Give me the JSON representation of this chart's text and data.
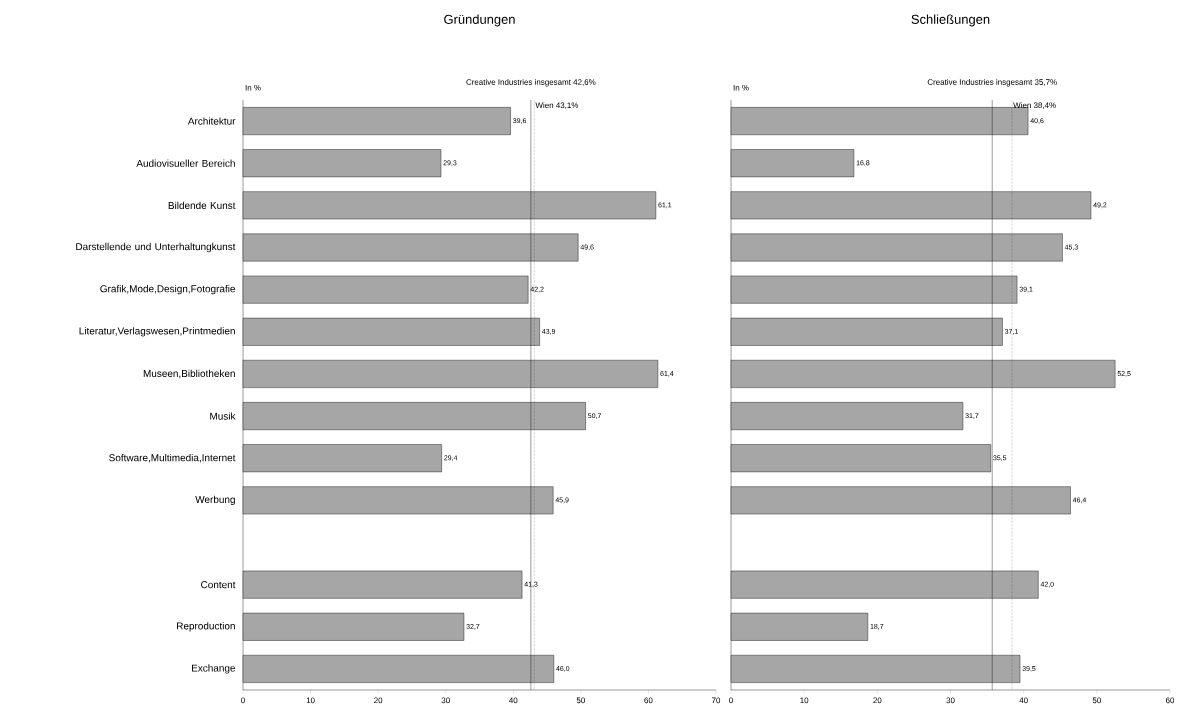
{
  "chart_data": [
    {
      "type": "bar",
      "orientation": "horizontal",
      "title": "Gründungen",
      "color": "#a6a6a6",
      "categories": [
        "Architektur",
        "Audiovisueller Bereich",
        "Bildende Kunst",
        "Darstellende und Unterhaltungkunst",
        "Grafik,Mode,Design,Fotografie",
        "Literatur,Verlagswesen,Printmedien",
        "Museen,Bibliotheken",
        "Musik",
        "Software,Multimedia,Internet",
        "Werbung",
        null,
        "Content",
        "Reproduction",
        "Exchange"
      ],
      "values": [
        39.6,
        29.3,
        61.1,
        49.6,
        42.2,
        43.9,
        61.4,
        50.7,
        29.4,
        45.9,
        null,
        41.3,
        32.7,
        46.0
      ],
      "value_labels": [
        "39,6",
        "29,3",
        "61,1",
        "49,6",
        "42,2",
        "43,9",
        "61,4",
        "50,7",
        "29,4",
        "45,9",
        null,
        "41,3",
        "32,7",
        "46,0"
      ],
      "xlim": [
        0,
        70
      ],
      "xticks": [
        0,
        10,
        20,
        30,
        40,
        50,
        60,
        70
      ],
      "ref_lines": [
        {
          "axis": "x",
          "value": 42.6,
          "label": "Creative Industries insgesamt 42,6%",
          "line_style": "solid"
        },
        {
          "axis": "x",
          "value": 43.1,
          "label": "Wien 43,1%",
          "line_style": "dotted"
        }
      ],
      "annotations": [
        "In %"
      ]
    },
    {
      "type": "bar",
      "orientation": "horizontal",
      "title": "Schließungen",
      "color": "#a6a6a6",
      "categories": [
        null,
        null,
        null,
        null,
        null,
        null,
        null,
        null,
        null,
        null,
        null,
        null,
        null,
        null
      ],
      "values": [
        40.6,
        16.8,
        49.2,
        45.3,
        39.1,
        37.1,
        52.5,
        31.7,
        35.5,
        46.4,
        null,
        42.0,
        18.7,
        39.5
      ],
      "value_labels": [
        "40,6",
        "16,8",
        "49,2",
        "45,3",
        "39,1",
        "37,1",
        "52,5",
        "31,7",
        "35,5",
        "46,4",
        null,
        "42,0",
        "18,7",
        "39,5"
      ],
      "xlim": [
        0,
        60
      ],
      "xticks": [
        0,
        10,
        20,
        30,
        40,
        50,
        60
      ],
      "ref_lines": [
        {
          "axis": "x",
          "value": 35.7,
          "label": "Creative Industries insgesamt 35,7%",
          "line_style": "solid"
        },
        {
          "axis": "x",
          "value": 38.4,
          "label": "Wien 38,4%",
          "line_style": "dotted"
        }
      ],
      "annotations": [
        "In %"
      ],
      "tick_labels": "x"
    }
  ]
}
